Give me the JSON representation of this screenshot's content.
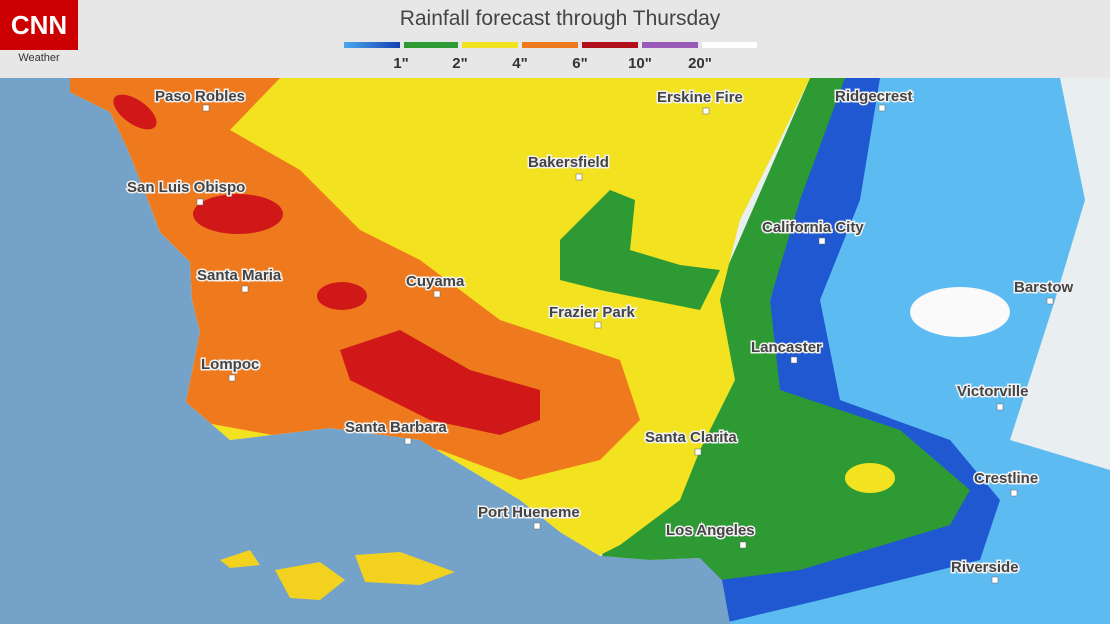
{
  "header": {
    "logo": "CNN",
    "logo_sub": "Weather",
    "title": "Rainfall forecast through Thursday",
    "legend": [
      "1\"",
      "2\"",
      "4\"",
      "6\"",
      "10\"",
      "20\""
    ]
  },
  "cities": [
    "Paso Robles",
    "San Luis Obispo",
    "Santa Maria",
    "Lompoc",
    "Santa Barbara",
    "Cuyama",
    "Bakersfield",
    "Erskine Fire",
    "Ridgecrest",
    "California City",
    "Frazier Park",
    "Lancaster",
    "Santa Clarita",
    "Port Hueneme",
    "Los Angeles",
    "Barstow",
    "Victorville",
    "Crestline",
    "Riverside"
  ]
}
